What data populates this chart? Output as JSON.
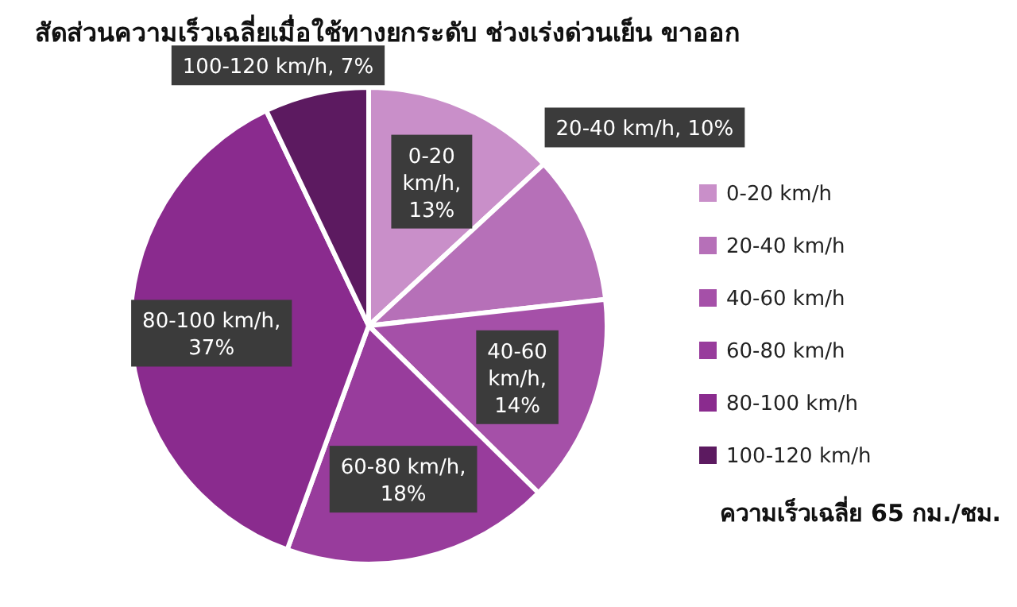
{
  "chart_data": {
    "type": "pie",
    "title": "สัดส่วนความเร็วเฉลี่ยเมื่อใช้ทางยกระดับ ช่วงเร่งด่วนเย็น ขาออก",
    "categories": [
      "0-20 km/h",
      "20-40 km/h",
      "40-60 km/h",
      "60-80 km/h",
      "80-100 km/h",
      "100-120 km/h"
    ],
    "values": [
      13,
      10,
      14,
      18,
      37,
      7
    ],
    "value_labels": [
      "0-20 km/h, 13%",
      "20-40 km/h, 10%",
      "40-60 km/h, 14%",
      "60-80 km/h, 18%",
      "80-100 km/h, 37%",
      "100-120 km/h, 7%"
    ],
    "colors": [
      "#c98fc9",
      "#b670b8",
      "#a550a8",
      "#983c9c",
      "#8a2b8e",
      "#5c1a60"
    ],
    "legend": "right",
    "annotations": [
      "ความเร็วเฉลี่ย 65 กม./ชม."
    ]
  }
}
